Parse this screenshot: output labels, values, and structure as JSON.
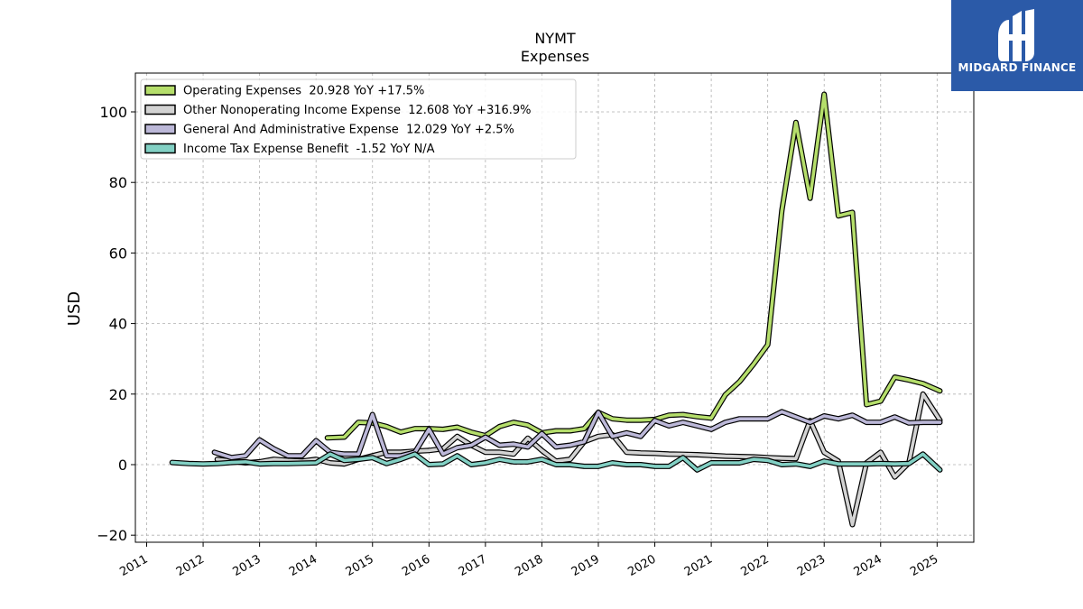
{
  "brand": {
    "name": "MIDGARD FINANCE",
    "color": "#2b5aa8"
  },
  "chart_data": {
    "type": "line",
    "title": "NYMT",
    "subtitle": "Expenses",
    "xlabel": "",
    "ylabel": "USD",
    "xlim": [
      2010.8,
      2025.65
    ],
    "ylim": [
      -22,
      111
    ],
    "y_ticks": [
      -20,
      0,
      20,
      40,
      60,
      80,
      100
    ],
    "x_ticks": [
      "2011",
      "2012",
      "2013",
      "2014",
      "2015",
      "2016",
      "2017",
      "2018",
      "2019",
      "2020",
      "2021",
      "2022",
      "2023",
      "2024",
      "2025"
    ],
    "grid": true,
    "legend_position": "top-left",
    "series": [
      {
        "name": "Operating Expenses  20.928 YoY +17.5%",
        "color": "#b5de6b",
        "points": [
          [
            2014.2,
            7.6
          ],
          [
            2014.5,
            7.8
          ],
          [
            2014.75,
            12.0
          ],
          [
            2015.0,
            11.8
          ],
          [
            2015.25,
            10.8
          ],
          [
            2015.5,
            9.2
          ],
          [
            2015.75,
            10.2
          ],
          [
            2016.0,
            10.2
          ],
          [
            2016.25,
            10.0
          ],
          [
            2016.5,
            10.6
          ],
          [
            2016.75,
            9.2
          ],
          [
            2017.0,
            8.2
          ],
          [
            2017.25,
            10.8
          ],
          [
            2017.5,
            12.0
          ],
          [
            2017.75,
            11.2
          ],
          [
            2018.0,
            9.0
          ],
          [
            2018.25,
            9.6
          ],
          [
            2018.5,
            9.6
          ],
          [
            2018.75,
            10.2
          ],
          [
            2019.0,
            14.8
          ],
          [
            2019.25,
            13.0
          ],
          [
            2019.5,
            12.6
          ],
          [
            2019.75,
            12.6
          ],
          [
            2020.0,
            12.8
          ],
          [
            2020.25,
            14.0
          ],
          [
            2020.5,
            14.2
          ],
          [
            2020.75,
            13.6
          ],
          [
            2021.0,
            13.2
          ],
          [
            2021.25,
            19.8
          ],
          [
            2021.5,
            23.5
          ],
          [
            2021.75,
            28.5
          ],
          [
            2022.0,
            34.0
          ],
          [
            2022.25,
            72.0
          ],
          [
            2022.5,
            97.0
          ],
          [
            2022.75,
            75.5
          ],
          [
            2023.0,
            105.0
          ],
          [
            2023.25,
            70.5
          ],
          [
            2023.5,
            71.5
          ],
          [
            2023.75,
            17.0
          ],
          [
            2024.0,
            18.0
          ],
          [
            2024.25,
            24.8
          ],
          [
            2024.5,
            24.0
          ],
          [
            2024.75,
            23.0
          ],
          [
            2025.05,
            20.9
          ]
        ]
      },
      {
        "name": "Other Nonoperating Income Expense  12.608 YoY +316.9%",
        "color": "#d3d3d3",
        "points": [
          [
            2012.25,
            1.5
          ],
          [
            2012.5,
            1.0
          ],
          [
            2012.75,
            0.5
          ],
          [
            2013.0,
            0.8
          ],
          [
            2013.25,
            1.5
          ],
          [
            2013.5,
            1.2
          ],
          [
            2013.75,
            1.0
          ],
          [
            2014.0,
            1.5
          ],
          [
            2014.25,
            0.5
          ],
          [
            2014.5,
            0.2
          ],
          [
            2014.75,
            1.5
          ],
          [
            2015.0,
            2.5
          ],
          [
            2015.25,
            3.5
          ],
          [
            2015.5,
            3.5
          ],
          [
            2015.75,
            3.8
          ],
          [
            2016.0,
            4.0
          ],
          [
            2016.25,
            4.5
          ],
          [
            2016.5,
            8.0
          ],
          [
            2016.75,
            5.5
          ],
          [
            2017.0,
            3.5
          ],
          [
            2017.25,
            3.5
          ],
          [
            2017.5,
            3.0
          ],
          [
            2017.75,
            7.5
          ],
          [
            2018.0,
            4.0
          ],
          [
            2018.25,
            1.0
          ],
          [
            2018.5,
            1.5
          ],
          [
            2018.75,
            6.5
          ],
          [
            2019.0,
            8.0
          ],
          [
            2019.25,
            8.5
          ],
          [
            2019.5,
            3.5
          ],
          [
            2019.75,
            3.3
          ],
          [
            2020.0,
            3.2
          ],
          [
            2020.25,
            3.0
          ],
          [
            2020.5,
            2.9
          ],
          [
            2020.75,
            2.8
          ],
          [
            2021.0,
            2.6
          ],
          [
            2021.25,
            2.4
          ],
          [
            2021.5,
            2.3
          ],
          [
            2021.75,
            2.2
          ],
          [
            2022.0,
            2.0
          ],
          [
            2022.25,
            1.8
          ],
          [
            2022.5,
            1.7
          ],
          [
            2022.75,
            12.5
          ],
          [
            2023.0,
            3.5
          ],
          [
            2023.25,
            1.0
          ],
          [
            2023.5,
            -17.0
          ],
          [
            2023.75,
            0.5
          ],
          [
            2024.0,
            3.5
          ],
          [
            2024.25,
            -3.5
          ],
          [
            2024.5,
            0.5
          ],
          [
            2024.75,
            20.0
          ],
          [
            2025.05,
            12.6
          ]
        ]
      },
      {
        "name": "General And Administrative Expense  12.029 YoY +2.5%",
        "color": "#bcb8d8",
        "points": [
          [
            2012.2,
            3.5
          ],
          [
            2012.5,
            2.0
          ],
          [
            2012.75,
            2.5
          ],
          [
            2013.0,
            7.0
          ],
          [
            2013.25,
            4.5
          ],
          [
            2013.5,
            2.5
          ],
          [
            2013.75,
            2.5
          ],
          [
            2014.0,
            6.8
          ],
          [
            2014.25,
            3.5
          ],
          [
            2014.5,
            3.0
          ],
          [
            2014.75,
            3.0
          ],
          [
            2015.0,
            14.2
          ],
          [
            2015.25,
            2.5
          ],
          [
            2015.5,
            2.5
          ],
          [
            2015.75,
            3.5
          ],
          [
            2016.0,
            10.0
          ],
          [
            2016.25,
            3.0
          ],
          [
            2016.5,
            4.8
          ],
          [
            2016.75,
            5.5
          ],
          [
            2017.0,
            7.8
          ],
          [
            2017.25,
            5.5
          ],
          [
            2017.5,
            5.8
          ],
          [
            2017.75,
            5.0
          ],
          [
            2018.0,
            8.8
          ],
          [
            2018.25,
            5.0
          ],
          [
            2018.5,
            5.5
          ],
          [
            2018.75,
            6.5
          ],
          [
            2019.0,
            14.8
          ],
          [
            2019.25,
            8.0
          ],
          [
            2019.5,
            9.0
          ],
          [
            2019.75,
            8.0
          ],
          [
            2020.0,
            12.5
          ],
          [
            2020.25,
            11.0
          ],
          [
            2020.5,
            12.0
          ],
          [
            2020.75,
            11.0
          ],
          [
            2021.0,
            10.0
          ],
          [
            2021.25,
            12.0
          ],
          [
            2021.5,
            13.0
          ],
          [
            2021.75,
            13.0
          ],
          [
            2022.0,
            13.0
          ],
          [
            2022.25,
            15.0
          ],
          [
            2022.5,
            13.5
          ],
          [
            2022.75,
            12.0
          ],
          [
            2023.0,
            13.8
          ],
          [
            2023.25,
            13.0
          ],
          [
            2023.5,
            14.0
          ],
          [
            2023.75,
            12.0
          ],
          [
            2024.0,
            12.0
          ],
          [
            2024.25,
            13.5
          ],
          [
            2024.5,
            11.8
          ],
          [
            2024.75,
            12.0
          ],
          [
            2025.05,
            12.0
          ]
        ]
      },
      {
        "name": "Income Tax Expense Benefit  -1.52 YoY N/A",
        "color": "#82d0c4",
        "points": [
          [
            2011.45,
            0.6
          ],
          [
            2011.75,
            0.3
          ],
          [
            2012.0,
            0.2
          ],
          [
            2012.25,
            0.3
          ],
          [
            2012.5,
            0.6
          ],
          [
            2012.75,
            0.8
          ],
          [
            2013.0,
            0.2
          ],
          [
            2013.25,
            0.3
          ],
          [
            2013.5,
            0.3
          ],
          [
            2013.75,
            0.4
          ],
          [
            2014.0,
            0.5
          ],
          [
            2014.25,
            3.0
          ],
          [
            2014.5,
            1.2
          ],
          [
            2014.75,
            1.5
          ],
          [
            2015.0,
            2.0
          ],
          [
            2015.25,
            0.3
          ],
          [
            2015.5,
            1.5
          ],
          [
            2015.75,
            3.0
          ],
          [
            2016.0,
            0.0
          ],
          [
            2016.25,
            0.2
          ],
          [
            2016.5,
            2.5
          ],
          [
            2016.75,
            0.0
          ],
          [
            2017.0,
            0.5
          ],
          [
            2017.25,
            1.5
          ],
          [
            2017.5,
            0.8
          ],
          [
            2017.75,
            0.8
          ],
          [
            2018.0,
            1.5
          ],
          [
            2018.25,
            0.0
          ],
          [
            2018.5,
            0.0
          ],
          [
            2018.75,
            -0.5
          ],
          [
            2019.0,
            -0.5
          ],
          [
            2019.25,
            0.5
          ],
          [
            2019.5,
            0.0
          ],
          [
            2019.75,
            0.0
          ],
          [
            2020.0,
            -0.5
          ],
          [
            2020.25,
            -0.5
          ],
          [
            2020.5,
            2.0
          ],
          [
            2020.75,
            -1.5
          ],
          [
            2021.0,
            0.5
          ],
          [
            2021.25,
            0.5
          ],
          [
            2021.5,
            0.5
          ],
          [
            2021.75,
            1.5
          ],
          [
            2022.0,
            1.2
          ],
          [
            2022.25,
            0.0
          ],
          [
            2022.5,
            0.2
          ],
          [
            2022.75,
            -0.5
          ],
          [
            2023.0,
            1.0
          ],
          [
            2023.25,
            0.2
          ],
          [
            2023.5,
            0.2
          ],
          [
            2023.75,
            0.2
          ],
          [
            2024.0,
            0.3
          ],
          [
            2024.25,
            0.2
          ],
          [
            2024.5,
            0.3
          ],
          [
            2024.75,
            3.0
          ],
          [
            2025.05,
            -1.5
          ]
        ]
      }
    ]
  }
}
